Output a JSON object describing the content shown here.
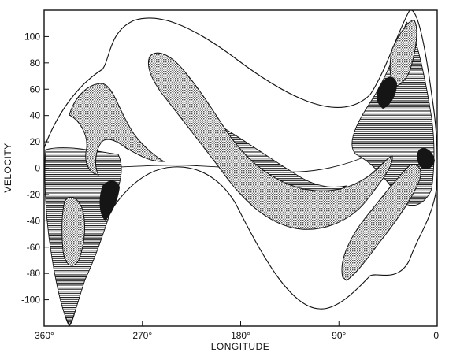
{
  "figure": {
    "x_title": "LONGITUDE",
    "y_title": "VELOCITY"
  },
  "chart_data": {
    "type": "contour",
    "xlabel": "LONGITUDE",
    "ylabel": "VELOCITY",
    "x_reversed": true,
    "xlim": [
      360,
      0
    ],
    "ylim": [
      -120,
      120
    ],
    "x_ticks": [
      {
        "value": 360,
        "label": "360°"
      },
      {
        "value": 270,
        "label": "270°"
      },
      {
        "value": 180,
        "label": "180°"
      },
      {
        "value": 90,
        "label": "90°"
      },
      {
        "value": 0,
        "label": "0"
      }
    ],
    "y_ticks": [
      {
        "value": 100,
        "label": "100"
      },
      {
        "value": 80,
        "label": "80"
      },
      {
        "value": 60,
        "label": "60"
      },
      {
        "value": 40,
        "label": "40"
      },
      {
        "value": 20,
        "label": "20"
      },
      {
        "value": 0,
        "label": "0"
      },
      {
        "value": -20,
        "label": "-20"
      },
      {
        "value": -40,
        "label": "-40"
      },
      {
        "value": -60,
        "label": "-60"
      },
      {
        "value": -80,
        "label": "-80"
      },
      {
        "value": -100,
        "label": "-100"
      }
    ],
    "grid": false,
    "legend": "none"
  }
}
